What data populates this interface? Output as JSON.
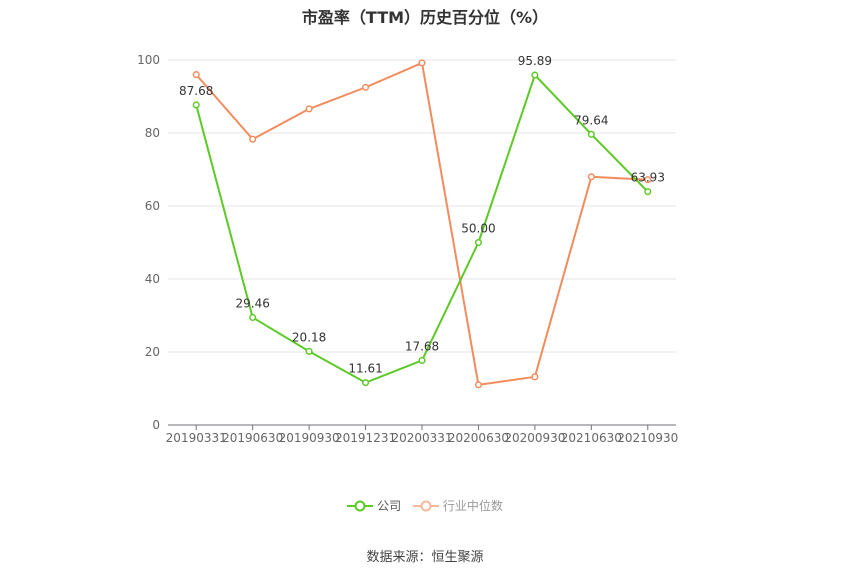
{
  "chart_data": {
    "type": "line",
    "title": "市盈率（TTM）历史百分位（%）",
    "categories": [
      "20190331",
      "20190630",
      "20190930",
      "20191231",
      "20200331",
      "20200630",
      "20200930",
      "20210630",
      "20210930"
    ],
    "ylim": [
      0,
      100
    ],
    "yticks": [
      0,
      20,
      40,
      60,
      80,
      100
    ],
    "grid": true,
    "legend_position": "bottom",
    "series": [
      {
        "name": "公司",
        "color": "#5dc926",
        "values": [
          87.68,
          29.46,
          20.18,
          11.61,
          17.68,
          50.0,
          95.89,
          79.64,
          63.93
        ],
        "show_labels": true
      },
      {
        "name": "行业中位数",
        "color": "#f28c5e",
        "values": [
          96.0,
          78.3,
          86.6,
          92.5,
          99.2,
          11.0,
          13.2,
          68.0,
          67.2
        ],
        "show_labels": false
      }
    ]
  },
  "source": "数据来源：恒生聚源"
}
